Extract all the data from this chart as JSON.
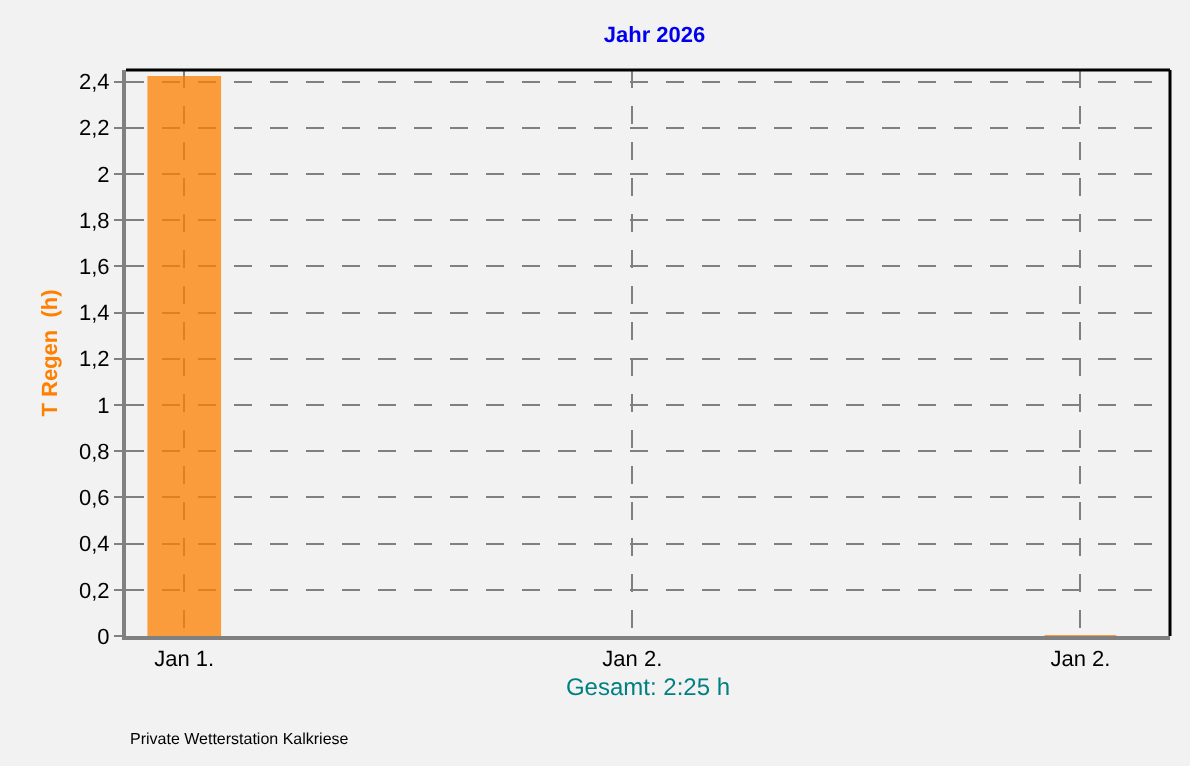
{
  "chart_data": {
    "type": "bar",
    "title": "Jahr 2026",
    "ylabel": "T Regen  (h)",
    "xlabel": "Gesamt: 2:25 h",
    "categories": [
      "Jan 1.",
      "Jan 2.",
      "Jan 2."
    ],
    "values": [
      2.42,
      null,
      0
    ],
    "color": "#ff8000",
    "ylim": [
      0,
      2.45
    ],
    "yticks": [
      0,
      {
        "value": 0.2,
        "label": "0,2"
      },
      {
        "value": 0.4,
        "label": "0,4"
      },
      {
        "value": 0.6,
        "label": "0,6"
      },
      {
        "value": 0.8,
        "label": "0,8"
      },
      1,
      {
        "value": 1.2,
        "label": "1,2"
      },
      {
        "value": 1.4,
        "label": "1,4"
      },
      {
        "value": 1.6,
        "label": "1,6"
      },
      {
        "value": 1.8,
        "label": "1,8"
      },
      2,
      {
        "value": 2.2,
        "label": "2,2"
      },
      {
        "value": 2.4,
        "label": "2,4"
      }
    ],
    "grid": true,
    "annotations": [
      "Private Wetterstation Kalkriese"
    ]
  }
}
